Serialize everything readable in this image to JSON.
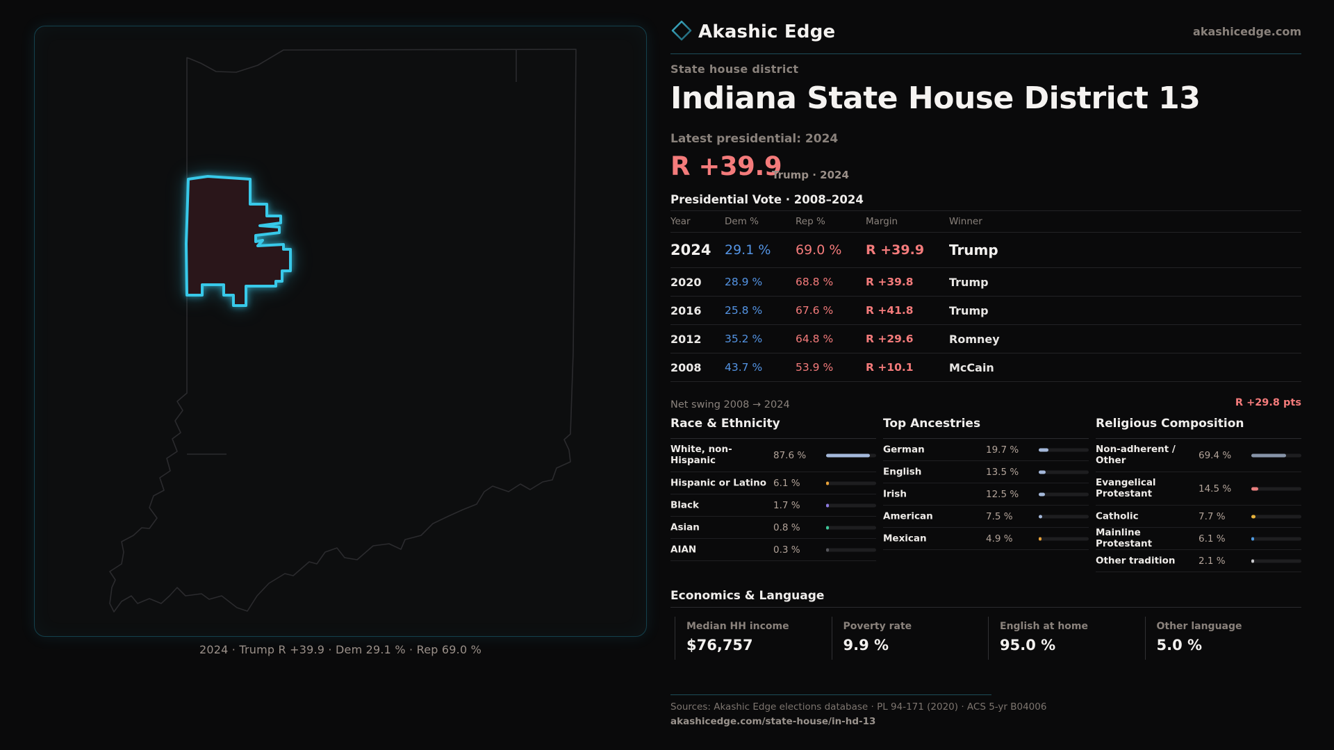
{
  "brand": {
    "name": "Akashic Edge",
    "website": "akashicedge.com",
    "accent_color": "#35c8e8",
    "logo": "diamond-outline-icon"
  },
  "header": {
    "kicker": "State house district",
    "title": "Indiana State House District 13",
    "latest_label": "Latest presidential: 2024",
    "headline_margin": "R +39.9",
    "headline_note": "Trump · 2024",
    "margin_color": "#f47b7b"
  },
  "map": {
    "caption": "2024 · Trump R +39.9 · Dem 29.1 % · Rep 69.0 %",
    "district_fill": "#2a161a",
    "district_stroke": "#38c9e9",
    "state_outline_color": "#2b2b2e"
  },
  "vote_table": {
    "title": "Presidential Vote · 2008–2024",
    "columns": [
      "Year",
      "Dem %",
      "Rep %",
      "Margin",
      "Winner"
    ],
    "rows": [
      {
        "year": "2024",
        "dem": "29.1 %",
        "rep": "69.0 %",
        "margin": "R +39.9",
        "winner": "Trump"
      },
      {
        "year": "2020",
        "dem": "28.9 %",
        "rep": "68.8 %",
        "margin": "R +39.8",
        "winner": "Trump"
      },
      {
        "year": "2016",
        "dem": "25.8 %",
        "rep": "67.6 %",
        "margin": "R +41.8",
        "winner": "Trump"
      },
      {
        "year": "2012",
        "dem": "35.2 %",
        "rep": "64.8 %",
        "margin": "R +29.6",
        "winner": "Romney"
      },
      {
        "year": "2008",
        "dem": "43.7 %",
        "rep": "53.9 %",
        "margin": "R +10.1",
        "winner": "McCain"
      }
    ],
    "net_swing_label": "Net swing 2008 → 2024",
    "net_swing_value": "R +29.8 pts"
  },
  "demographics": {
    "race": {
      "title": "Race & Ethnicity",
      "rows": [
        {
          "label": "White, non-Hispanic",
          "value": "87.6 %",
          "pct": 87.6,
          "color": "#a4b8da"
        },
        {
          "label": "Hispanic or Latino",
          "value": "6.1 %",
          "pct": 6.1,
          "color": "#e8a23a"
        },
        {
          "label": "Black",
          "value": "1.7 %",
          "pct": 1.7,
          "color": "#8d7ae0"
        },
        {
          "label": "Asian",
          "value": "0.8 %",
          "pct": 0.8,
          "color": "#3fc79a"
        },
        {
          "label": "AIAN",
          "value": "0.3 %",
          "pct": 0.3,
          "color": "#55555a"
        }
      ]
    },
    "ancestry": {
      "title": "Top Ancestries",
      "rows": [
        {
          "label": "German",
          "value": "19.7 %",
          "pct": 19.7,
          "color": "#a4b8da"
        },
        {
          "label": "English",
          "value": "13.5 %",
          "pct": 13.5,
          "color": "#a4b8da"
        },
        {
          "label": "Irish",
          "value": "12.5 %",
          "pct": 12.5,
          "color": "#a4b8da"
        },
        {
          "label": "American",
          "value": "7.5 %",
          "pct": 7.5,
          "color": "#a4b8da"
        },
        {
          "label": "Mexican",
          "value": "4.9 %",
          "pct": 4.9,
          "color": "#e8a23a"
        }
      ]
    },
    "religion": {
      "title": "Religious Composition",
      "rows": [
        {
          "label": "Non-adherent / Other",
          "value": "69.4 %",
          "pct": 69.4,
          "color": "#8794a8"
        },
        {
          "label": "Evangelical Protestant",
          "value": "14.5 %",
          "pct": 14.5,
          "color": "#e87f7f"
        },
        {
          "label": "Catholic",
          "value": "7.7 %",
          "pct": 7.7,
          "color": "#e8b33c"
        },
        {
          "label": "Mainline Protestant",
          "value": "6.1 %",
          "pct": 6.1,
          "color": "#4f9ae0"
        },
        {
          "label": "Other tradition",
          "value": "2.1 %",
          "pct": 2.1,
          "color": "#c9c9cc"
        }
      ]
    }
  },
  "economics": {
    "title": "Economics & Language",
    "stats": [
      {
        "label": "Median HH income",
        "value": "$76,757"
      },
      {
        "label": "Poverty rate",
        "value": "9.9 %"
      },
      {
        "label": "English at home",
        "value": "95.0 %"
      },
      {
        "label": "Other language",
        "value": "5.0 %"
      }
    ]
  },
  "footer": {
    "sources": "Sources: Akashic Edge elections database · PL 94-171 (2020) · ACS 5-yr B04006",
    "permalink": "akashicedge.com/state-house/in-hd-13"
  },
  "chart_data": [
    {
      "type": "table",
      "title": "Presidential Vote · 2008–2024",
      "columns": [
        "Year",
        "Dem %",
        "Rep %",
        "Margin",
        "Winner"
      ],
      "rows": [
        [
          2024,
          29.1,
          69.0,
          "R +39.9",
          "Trump"
        ],
        [
          2020,
          28.9,
          68.8,
          "R +39.8",
          "Trump"
        ],
        [
          2016,
          25.8,
          67.6,
          "R +41.8",
          "Trump"
        ],
        [
          2012,
          35.2,
          64.8,
          "R +29.6",
          "Romney"
        ],
        [
          2008,
          43.7,
          53.9,
          "R +10.1",
          "McCain"
        ]
      ],
      "net_swing_2008_to_2024_pts": 29.8,
      "net_swing_direction": "R"
    },
    {
      "type": "bar",
      "title": "Race & Ethnicity",
      "categories": [
        "White, non-Hispanic",
        "Hispanic or Latino",
        "Black",
        "Asian",
        "AIAN"
      ],
      "values": [
        87.6,
        6.1,
        1.7,
        0.8,
        0.3
      ],
      "unit": "%",
      "xlim": [
        0,
        100
      ],
      "orientation": "horizontal"
    },
    {
      "type": "bar",
      "title": "Top Ancestries",
      "categories": [
        "German",
        "English",
        "Irish",
        "American",
        "Mexican"
      ],
      "values": [
        19.7,
        13.5,
        12.5,
        7.5,
        4.9
      ],
      "unit": "%",
      "xlim": [
        0,
        100
      ],
      "orientation": "horizontal"
    },
    {
      "type": "bar",
      "title": "Religious Composition",
      "categories": [
        "Non-adherent / Other",
        "Evangelical Protestant",
        "Catholic",
        "Mainline Protestant",
        "Other tradition"
      ],
      "values": [
        69.4,
        14.5,
        7.7,
        6.1,
        2.1
      ],
      "unit": "%",
      "xlim": [
        0,
        100
      ],
      "orientation": "horizontal"
    },
    {
      "type": "table",
      "title": "Economics & Language",
      "columns": [
        "Median HH income",
        "Poverty rate",
        "English at home",
        "Other language"
      ],
      "rows": [
        [
          "$76,757",
          "9.9 %",
          "95.0 %",
          "5.0 %"
        ]
      ]
    }
  ]
}
